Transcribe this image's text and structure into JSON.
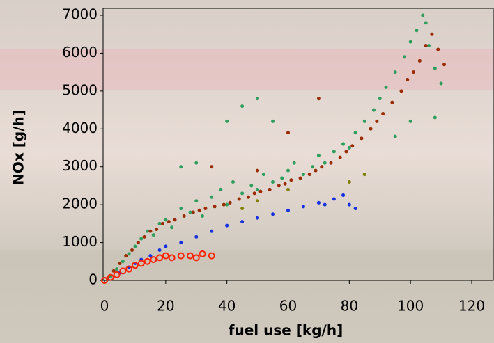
{
  "chart_data": {
    "type": "scatter",
    "x_label": "fuel use [kg/h]",
    "y_label": "NOx [g/h]",
    "xlim": [
      0,
      120
    ],
    "xticks": [
      0,
      20,
      40,
      60,
      80,
      100,
      120
    ],
    "ylim": [
      0,
      7000
    ],
    "yticks": [
      0,
      1000,
      2000,
      3000,
      4000,
      5000,
      6000,
      7000
    ],
    "grid": false,
    "series": [
      {
        "color": "#2e9e5e",
        "marker": "filled",
        "x": [
          2,
          4,
          6,
          8,
          10,
          12,
          14,
          16,
          18,
          20,
          22,
          25,
          28,
          30,
          32,
          35,
          38,
          40,
          42,
          45,
          48,
          50,
          52,
          55,
          58,
          60,
          62,
          65,
          68,
          70,
          72,
          75,
          78,
          80,
          82,
          85,
          88,
          90,
          92,
          95,
          98,
          100,
          102,
          104,
          105,
          106,
          108,
          110,
          40,
          45,
          50,
          55,
          30,
          25,
          85,
          95,
          100,
          108
        ],
        "values": [
          100,
          300,
          500,
          700,
          900,
          1100,
          1300,
          1200,
          1500,
          1600,
          1400,
          1900,
          1800,
          2100,
          1700,
          2200,
          2400,
          2000,
          2600,
          2300,
          2500,
          2400,
          2800,
          2600,
          2700,
          2900,
          3100,
          2800,
          3000,
          3300,
          3100,
          3400,
          3600,
          3500,
          3900,
          4200,
          4500,
          4800,
          5100,
          5500,
          5900,
          6300,
          6600,
          7000,
          6800,
          6200,
          5600,
          5200,
          4200,
          4600,
          4800,
          4200,
          3100,
          3000,
          2800,
          3800,
          4200,
          4300
        ]
      },
      {
        "color": "#9a2a00",
        "marker": "filled",
        "x": [
          1,
          3,
          5,
          7,
          9,
          11,
          13,
          15,
          17,
          19,
          21,
          23,
          26,
          29,
          31,
          33,
          36,
          39,
          41,
          44,
          47,
          49,
          51,
          54,
          57,
          59,
          61,
          64,
          67,
          69,
          71,
          74,
          77,
          79,
          81,
          84,
          87,
          89,
          91,
          94,
          97,
          99,
          101,
          103,
          105,
          107,
          109,
          111,
          60,
          70,
          50,
          35
        ],
        "values": [
          50,
          250,
          450,
          650,
          800,
          1000,
          1150,
          1300,
          1350,
          1500,
          1550,
          1600,
          1700,
          1800,
          1850,
          1900,
          1950,
          2000,
          2050,
          2150,
          2200,
          2300,
          2350,
          2400,
          2500,
          2550,
          2650,
          2700,
          2800,
          2900,
          3000,
          3100,
          3250,
          3400,
          3550,
          3750,
          4000,
          4200,
          4400,
          4700,
          5000,
          5300,
          5500,
          5800,
          6200,
          6500,
          6100,
          5700,
          3900,
          4800,
          2900,
          3000
        ]
      },
      {
        "color": "#1530e0",
        "marker": "filled",
        "x": [
          5,
          8,
          10,
          12,
          15,
          18,
          20,
          25,
          30,
          35,
          40,
          45,
          50,
          55,
          60,
          65,
          70,
          72,
          75,
          78,
          80,
          82
        ],
        "values": [
          200,
          350,
          450,
          550,
          650,
          800,
          900,
          1000,
          1150,
          1300,
          1450,
          1550,
          1650,
          1750,
          1850,
          1950,
          2050,
          2000,
          2150,
          2250,
          2000,
          1900
        ]
      },
      {
        "color": "#808000",
        "marker": "filled",
        "x": [
          45,
          50,
          60,
          80,
          85
        ],
        "values": [
          1900,
          2100,
          2400,
          2600,
          2800
        ]
      },
      {
        "color": "#ff2000",
        "marker": "hollow",
        "x": [
          0,
          2,
          4,
          6,
          8,
          10,
          12,
          14,
          16,
          18,
          20,
          22,
          25,
          28,
          30,
          32,
          35
        ],
        "values": [
          0,
          80,
          150,
          250,
          300,
          400,
          450,
          500,
          550,
          600,
          650,
          600,
          650,
          650,
          600,
          700,
          650
        ]
      }
    ]
  }
}
